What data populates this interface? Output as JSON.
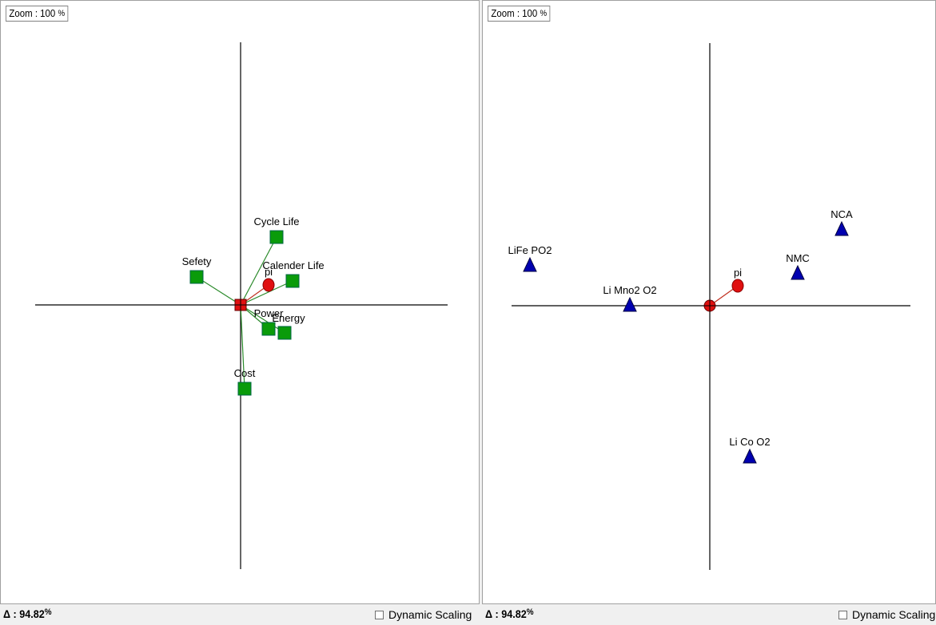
{
  "left_panel": {
    "zoom_label": "Zoom : 100",
    "zoom_unit": "%",
    "delta_symbol": "Δ",
    "delta_value": ": 94.82",
    "delta_unit": "%",
    "dynamic_scaling_label": "Dynamic Scaling",
    "dynamic_scaling_checked": false,
    "points": [
      {
        "label": "Cycle Life",
        "x": 0.09,
        "y": 0.17,
        "marker": "square"
      },
      {
        "label": "Sefety",
        "x": -0.11,
        "y": 0.07,
        "marker": "square"
      },
      {
        "label": "Calender Life",
        "x": 0.13,
        "y": 0.06,
        "marker": "square"
      },
      {
        "label": "pi",
        "x": 0.07,
        "y": 0.05,
        "marker": "circle"
      },
      {
        "label": "Power",
        "x": 0.07,
        "y": -0.06,
        "marker": "square"
      },
      {
        "label": "Energy",
        "x": 0.11,
        "y": -0.07,
        "marker": "square"
      },
      {
        "label": "Cost",
        "x": 0.01,
        "y": -0.21,
        "marker": "square"
      }
    ]
  },
  "right_panel": {
    "zoom_label": "Zoom : 100",
    "zoom_unit": "%",
    "delta_symbol": "Δ",
    "delta_value": ": 94.82",
    "delta_unit": "%",
    "dynamic_scaling_label": "Dynamic Scaling",
    "dynamic_scaling_checked": false,
    "points": [
      {
        "label": "NCA",
        "x": 0.33,
        "y": 0.19,
        "marker": "triangle"
      },
      {
        "label": "LiFe PO2",
        "x": -0.45,
        "y": 0.1,
        "marker": "triangle"
      },
      {
        "label": "NMC",
        "x": 0.22,
        "y": 0.08,
        "marker": "triangle"
      },
      {
        "label": "pi",
        "x": 0.07,
        "y": 0.05,
        "marker": "circle"
      },
      {
        "label": "Li Mno2 O2",
        "x": -0.2,
        "y": 0.0,
        "marker": "triangle"
      },
      {
        "label": "Li Co O2",
        "x": 0.1,
        "y": -0.38,
        "marker": "triangle"
      }
    ]
  },
  "colors": {
    "square_fill": "#0a9b0a",
    "square_line": "#2a8a2a",
    "circle_fill": "#e01010",
    "circle_line": "#c03020",
    "triangle_fill": "#0000b0"
  }
}
